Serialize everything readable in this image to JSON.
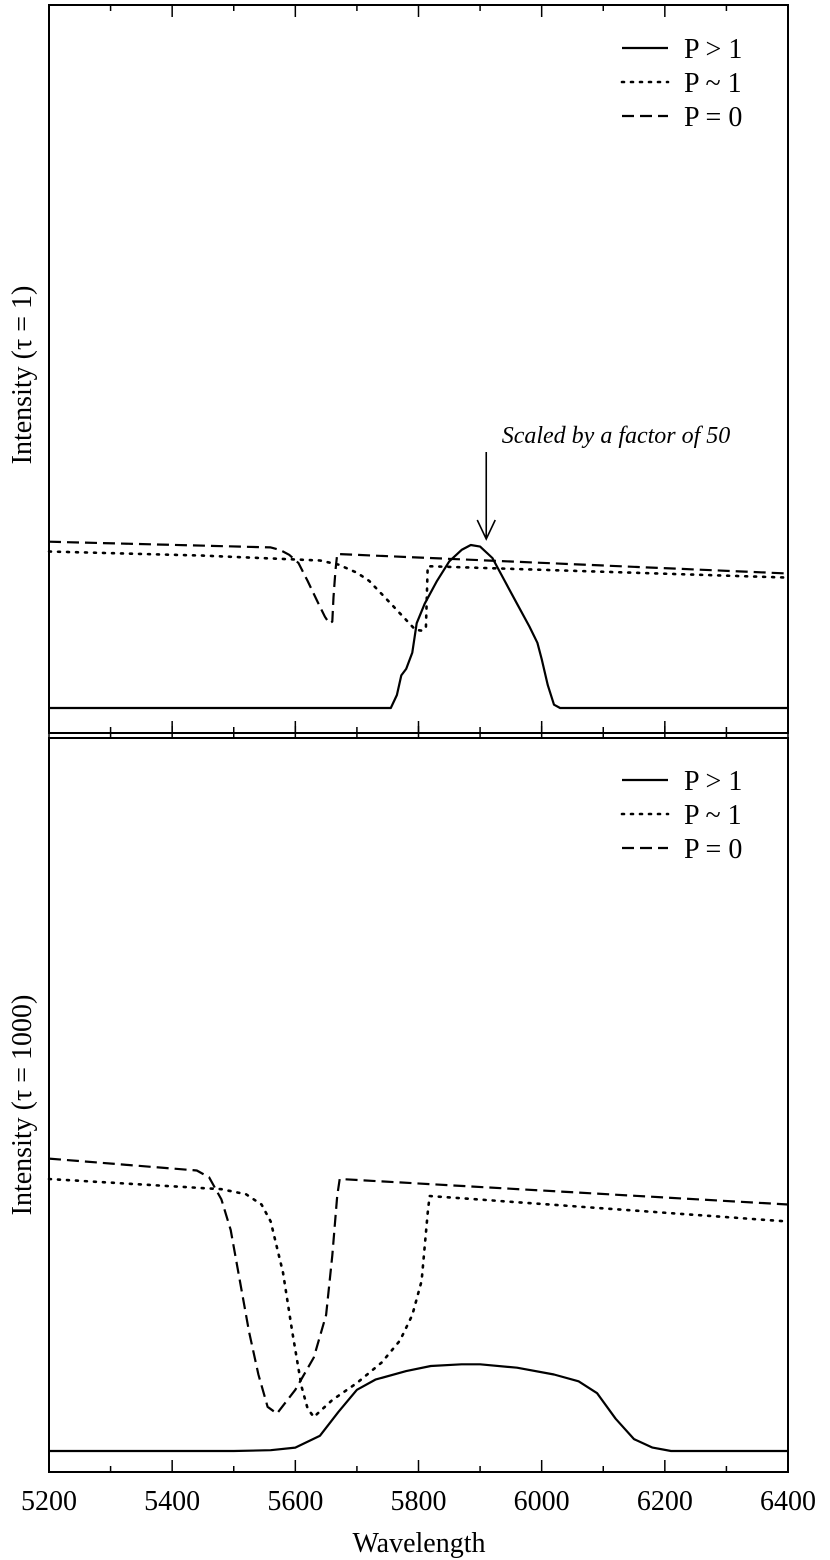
{
  "chart_data": [
    {
      "type": "line",
      "panel": "top",
      "ylabel": "Intensity (τ = 1)",
      "xlim": [
        5200,
        6400
      ],
      "legend_position": "top-right",
      "grid": false,
      "annotation": "Scaled by a factor of 50",
      "annotation_x": 5910,
      "series": [
        {
          "name": "P > 1",
          "style": "solid",
          "x": [
            5200,
            5755,
            5765,
            5772,
            5780,
            5790,
            5797,
            5810,
            5830,
            5850,
            5870,
            5885,
            5900,
            5920,
            5940,
            5960,
            5980,
            5993,
            6000,
            6010,
            6020,
            6030,
            6400
          ],
          "y": [
            0.0,
            0.0,
            0.08,
            0.2,
            0.24,
            0.34,
            0.52,
            0.64,
            0.78,
            0.9,
            0.97,
            1.0,
            0.99,
            0.92,
            0.78,
            0.64,
            0.5,
            0.4,
            0.3,
            0.14,
            0.02,
            0.0,
            0.0
          ]
        },
        {
          "name": "P ~ 1",
          "style": "dotted",
          "x": [
            5200,
            5450,
            5640,
            5670,
            5700,
            5720,
            5740,
            5760,
            5780,
            5795,
            5805,
            5812,
            5815,
            6400
          ],
          "y": [
            0.96,
            0.935,
            0.905,
            0.88,
            0.83,
            0.78,
            0.7,
            0.62,
            0.54,
            0.48,
            0.475,
            0.49,
            0.87,
            0.8
          ]
        },
        {
          "name": "P = 0",
          "style": "dashed",
          "x": [
            5200,
            5560,
            5575,
            5590,
            5605,
            5620,
            5635,
            5648,
            5655,
            5660,
            5662,
            5665,
            5668,
            6400
          ],
          "y": [
            1.02,
            0.985,
            0.97,
            0.94,
            0.89,
            0.78,
            0.66,
            0.56,
            0.52,
            0.53,
            0.68,
            0.84,
            0.945,
            0.825
          ]
        }
      ]
    },
    {
      "type": "line",
      "panel": "bottom",
      "ylabel": "Intensity (τ = 1000)",
      "xlabel": "Wavelength",
      "xlim": [
        5200,
        6400
      ],
      "xticks": [
        "5200",
        "5400",
        "5600",
        "5800",
        "6000",
        "6200",
        "6400"
      ],
      "legend_position": "top-right",
      "grid": false,
      "series": [
        {
          "name": "P > 1",
          "style": "solid",
          "x": [
            5200,
            5500,
            5560,
            5600,
            5640,
            5670,
            5700,
            5730,
            5780,
            5820,
            5870,
            5900,
            5960,
            6020,
            6060,
            6090,
            6120,
            6150,
            6180,
            6210,
            6400
          ],
          "y": [
            0.0,
            0.0,
            0.005,
            0.02,
            0.09,
            0.23,
            0.36,
            0.42,
            0.47,
            0.5,
            0.51,
            0.51,
            0.49,
            0.45,
            0.41,
            0.34,
            0.19,
            0.07,
            0.02,
            0.0,
            0.0
          ]
        },
        {
          "name": "P ~ 1",
          "style": "dotted",
          "x": [
            5200,
            5480,
            5520,
            5545,
            5560,
            5580,
            5595,
            5610,
            5620,
            5630,
            5660,
            5700,
            5740,
            5770,
            5790,
            5805,
            5815,
            5818,
            6400
          ],
          "y": [
            1.6,
            1.54,
            1.51,
            1.45,
            1.35,
            1.05,
            0.7,
            0.38,
            0.25,
            0.2,
            0.3,
            0.4,
            0.52,
            0.65,
            0.8,
            1.0,
            1.4,
            1.5,
            1.35
          ]
        },
        {
          "name": "P = 0",
          "style": "dashed",
          "x": [
            5200,
            5440,
            5460,
            5480,
            5495,
            5510,
            5525,
            5540,
            5555,
            5570,
            5600,
            5630,
            5650,
            5660,
            5668,
            5672,
            6400
          ],
          "y": [
            1.72,
            1.65,
            1.61,
            1.48,
            1.3,
            1.0,
            0.7,
            0.45,
            0.26,
            0.22,
            0.36,
            0.55,
            0.8,
            1.15,
            1.5,
            1.6,
            1.45
          ]
        }
      ]
    }
  ]
}
